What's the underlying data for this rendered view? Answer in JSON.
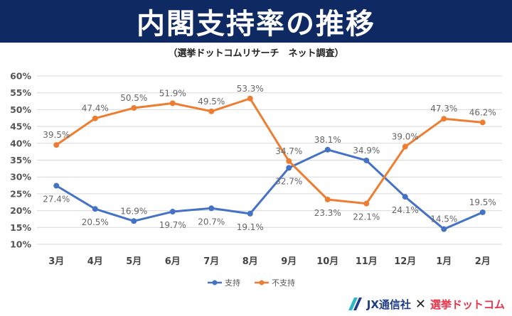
{
  "banner": {
    "title": "内閣支持率の推移"
  },
  "subtitle": "（選挙ドットコムリサーチ　ネット調査）",
  "footer": {
    "brand": "JX通信社",
    "cross": "✕",
    "partner": "選挙ドットコム"
  },
  "chart_data": {
    "type": "line",
    "title": "内閣支持率の推移",
    "categories": [
      "3月",
      "4月",
      "5月",
      "6月",
      "7月",
      "8月",
      "9月",
      "10月",
      "11月",
      "12月",
      "1月",
      "2月"
    ],
    "y_ticks": [
      "10%",
      "15%",
      "20%",
      "25%",
      "30%",
      "35%",
      "40%",
      "45%",
      "50%",
      "55%",
      "60%"
    ],
    "ylim": [
      10,
      60
    ],
    "grid": true,
    "legend_position": "bottom",
    "series": [
      {
        "name": "支持",
        "color": "#4472c4",
        "values": [
          27.4,
          20.5,
          16.9,
          19.7,
          20.7,
          19.1,
          32.7,
          38.1,
          34.9,
          24.1,
          14.5,
          19.5
        ],
        "labels": [
          "27.4%",
          "20.5%",
          "16.9%",
          "19.7%",
          "20.7%",
          "19.1%",
          "32.7%",
          "38.1%",
          "34.9%",
          "24.1%",
          "14.5%",
          "19.5%"
        ],
        "label_side": [
          "below",
          "below",
          "above",
          "below",
          "below",
          "below",
          "below",
          "above",
          "above",
          "below",
          "above",
          "above"
        ]
      },
      {
        "name": "不支持",
        "color": "#ed7d31",
        "values": [
          39.5,
          47.4,
          50.5,
          51.9,
          49.5,
          53.3,
          34.7,
          23.3,
          22.1,
          39.0,
          47.3,
          46.2
        ],
        "labels": [
          "39.5%",
          "47.4%",
          "50.5%",
          "51.9%",
          "49.5%",
          "53.3%",
          "34.7%",
          "23.3%",
          "22.1%",
          "39.0%",
          "47.3%",
          "46.2%"
        ],
        "label_side": [
          "above",
          "above",
          "above",
          "above",
          "above",
          "above",
          "above",
          "below",
          "below",
          "above",
          "above",
          "above"
        ]
      }
    ]
  }
}
